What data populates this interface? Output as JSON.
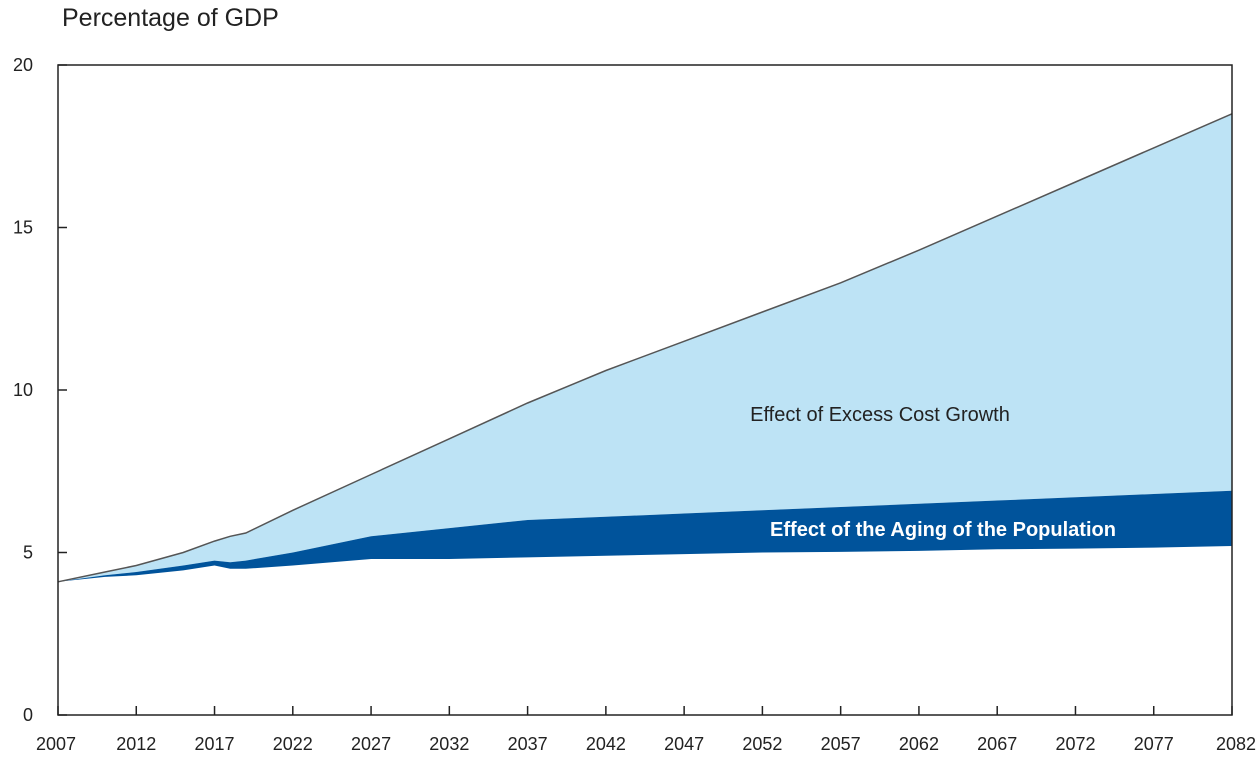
{
  "chart_data": {
    "type": "area",
    "title": "",
    "xlabel": "",
    "ylabel": "Percentage of GDP",
    "xlim": [
      2007,
      2082
    ],
    "ylim": [
      0,
      20
    ],
    "x_ticks": [
      2007,
      2012,
      2017,
      2022,
      2027,
      2032,
      2037,
      2042,
      2047,
      2052,
      2057,
      2062,
      2067,
      2072,
      2077,
      2082
    ],
    "y_ticks": [
      0,
      5,
      10,
      15,
      20
    ],
    "grid": false,
    "stacked": true,
    "x": [
      2007,
      2010,
      2012,
      2015,
      2017,
      2018,
      2019,
      2022,
      2027,
      2032,
      2037,
      2042,
      2047,
      2052,
      2057,
      2062,
      2067,
      2072,
      2077,
      2082
    ],
    "baseline_values": [
      4.1,
      4.25,
      4.3,
      4.45,
      4.6,
      4.5,
      4.5,
      4.6,
      4.8,
      4.8,
      4.85,
      4.9,
      4.95,
      5.0,
      5.02,
      5.05,
      5.1,
      5.12,
      5.15,
      5.2
    ],
    "series": [
      {
        "name": "Effect of the Aging of the Population",
        "color": "#00539b",
        "top_values": [
          4.1,
          4.3,
          4.4,
          4.6,
          4.75,
          4.7,
          4.75,
          5.0,
          5.5,
          5.75,
          6.0,
          6.1,
          6.2,
          6.3,
          6.4,
          6.5,
          6.6,
          6.7,
          6.8,
          6.9
        ]
      },
      {
        "name": "Effect of Excess Cost Growth",
        "color": "#bde3f5",
        "top_values": [
          4.1,
          4.4,
          4.6,
          5.0,
          5.35,
          5.5,
          5.6,
          6.3,
          7.4,
          8.5,
          9.6,
          10.6,
          11.5,
          12.4,
          13.3,
          14.3,
          15.35,
          16.4,
          17.45,
          18.5
        ]
      }
    ],
    "annotations": [
      {
        "text": "Effect of Excess Cost Growth",
        "color": "#222222"
      },
      {
        "text": "Effect of the Aging of the Population",
        "color": "#ffffff"
      }
    ]
  }
}
